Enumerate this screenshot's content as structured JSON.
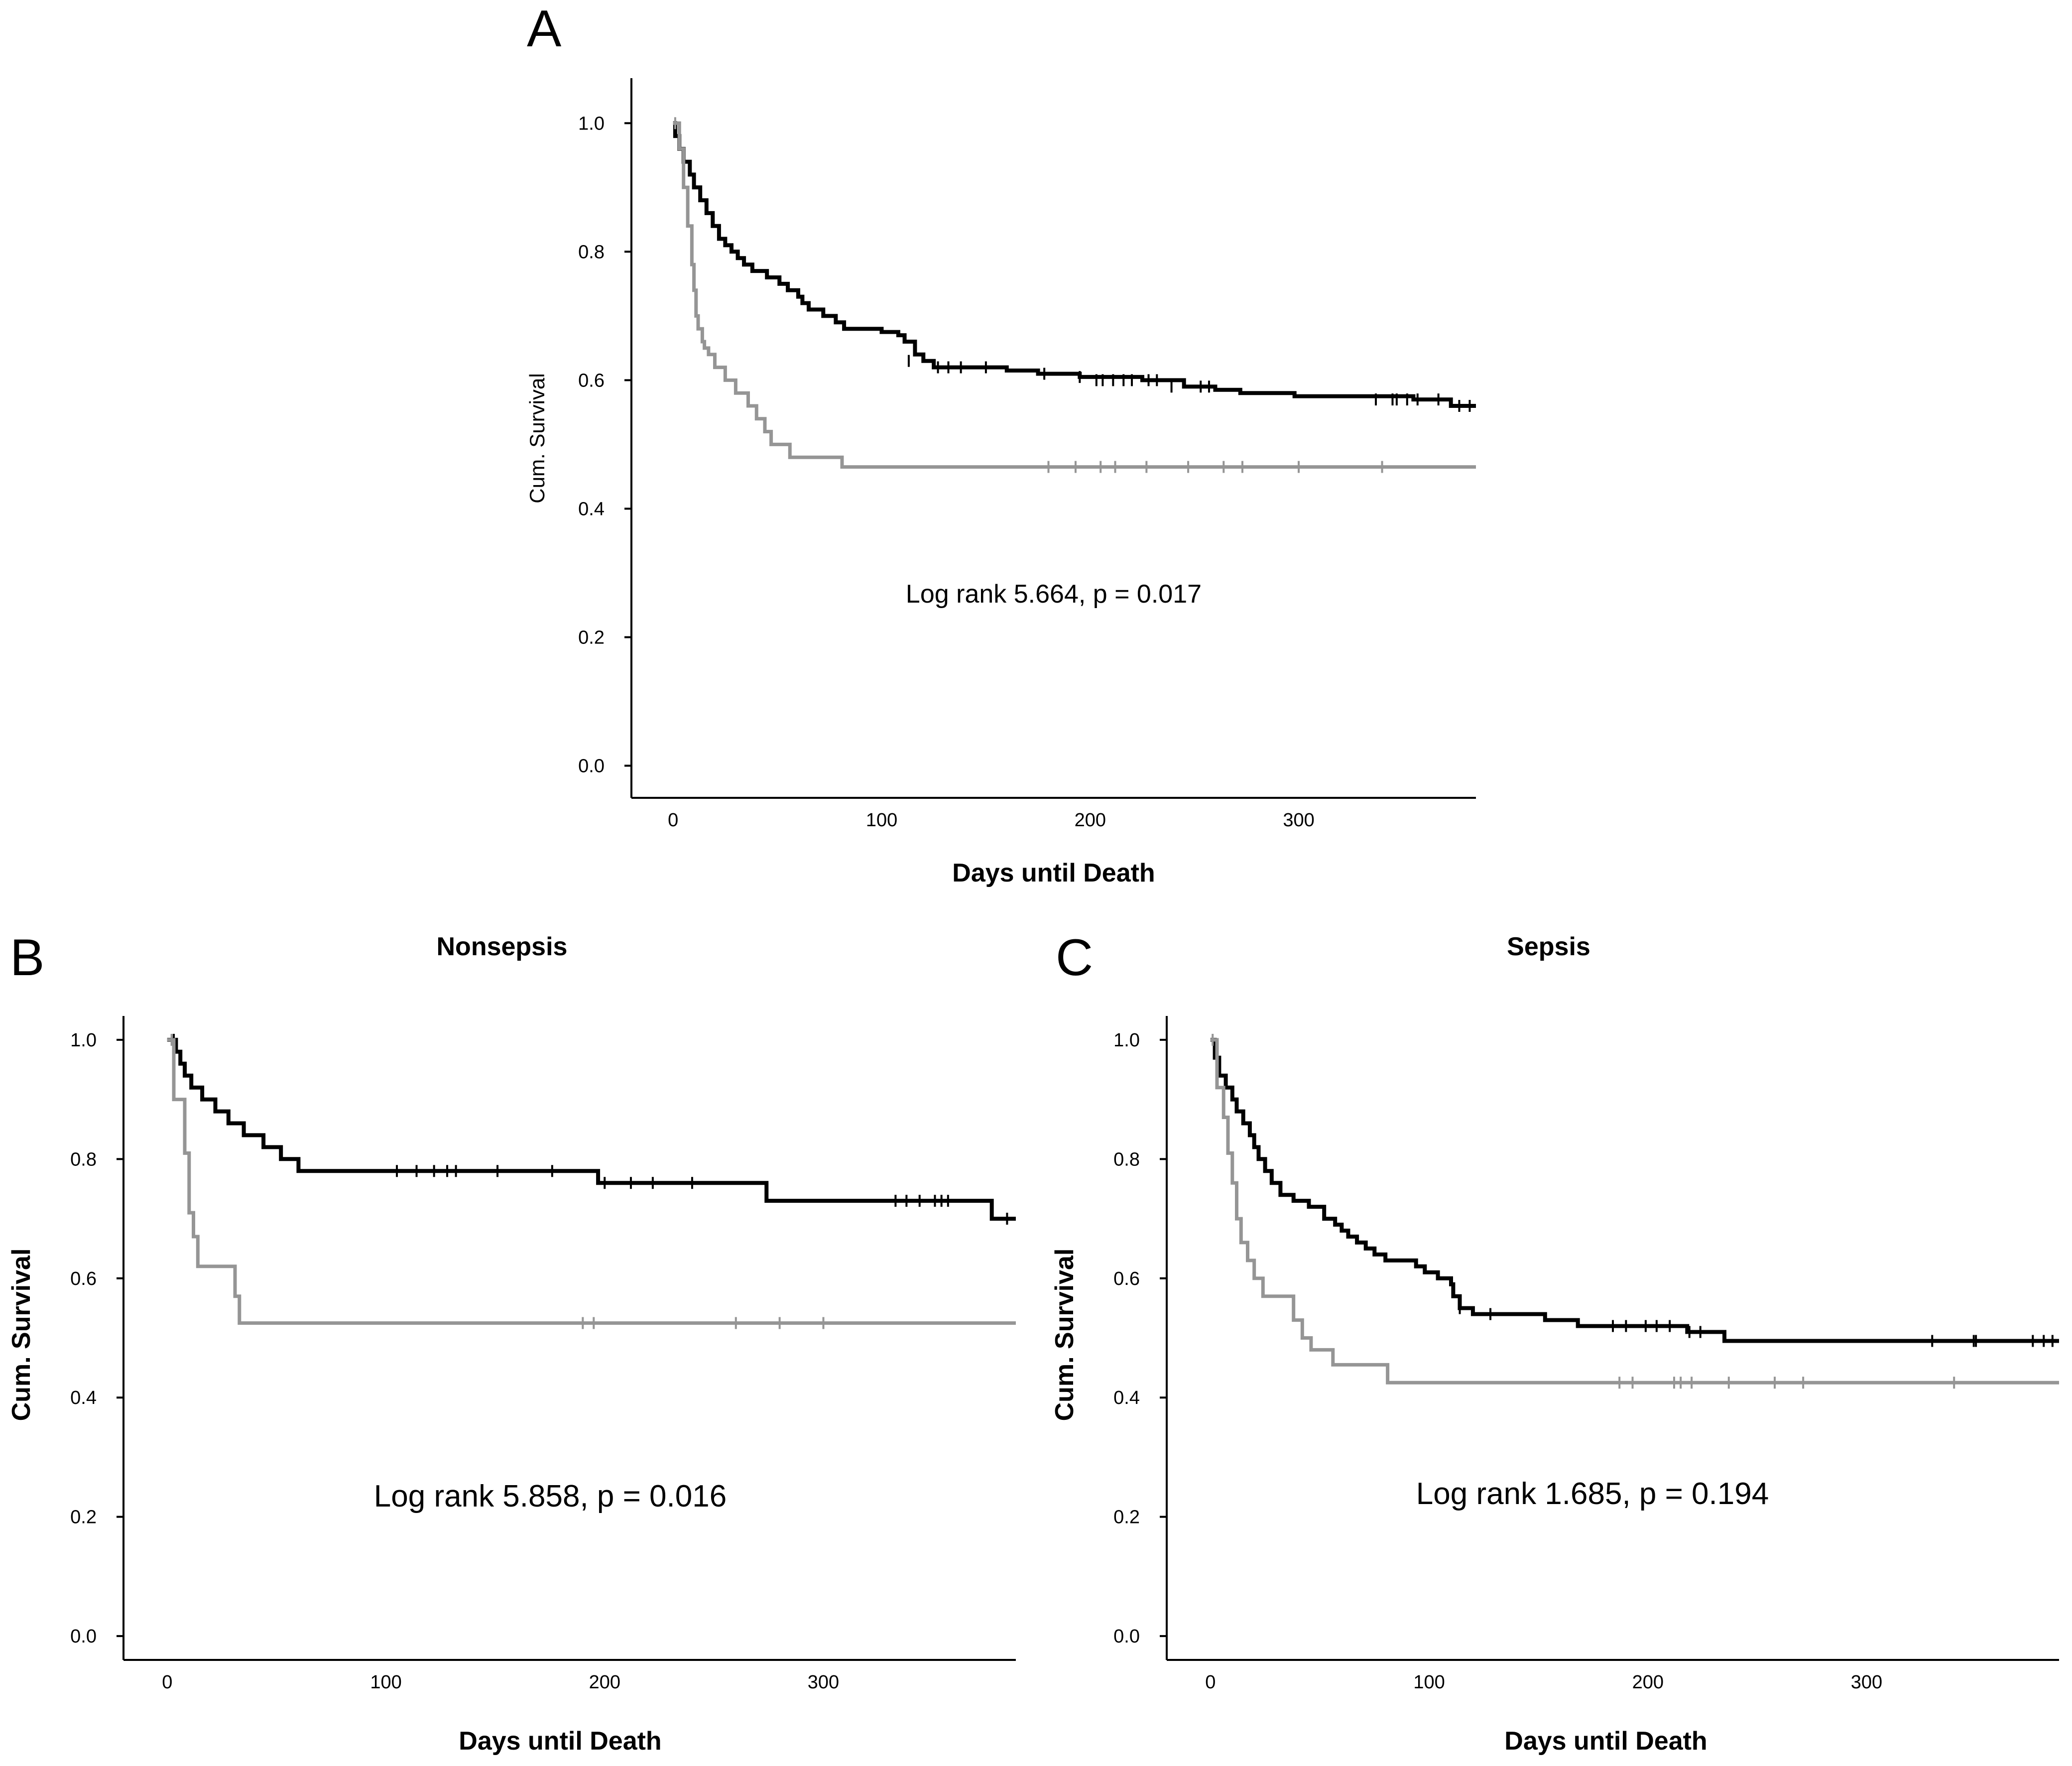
{
  "colors": {
    "series_black": "#000000",
    "series_gray": "#959595",
    "axis": "#000000"
  },
  "chart_data": [
    {
      "panel": "A",
      "type": "line",
      "title": "",
      "xlabel": "Days until Death",
      "ylabel": "Cum. Survival",
      "xlim": [
        -20,
        385
      ],
      "ylim": [
        -0.05,
        1.07
      ],
      "xticks": [
        0,
        100,
        200,
        300
      ],
      "yticks": [
        0.0,
        0.2,
        0.4,
        0.6,
        0.8,
        1.0
      ],
      "grid": false,
      "annotation": "Log rank 5.664, p = 0.017",
      "series": [
        {
          "color": "black",
          "steps": [
            [
              0,
              1.0
            ],
            [
              1,
              0.98
            ],
            [
              3,
              0.96
            ],
            [
              5,
              0.94
            ],
            [
              8,
              0.92
            ],
            [
              10,
              0.9
            ],
            [
              13,
              0.88
            ],
            [
              16,
              0.86
            ],
            [
              19,
              0.84
            ],
            [
              22,
              0.82
            ],
            [
              25,
              0.81
            ],
            [
              28,
              0.8
            ],
            [
              31,
              0.79
            ],
            [
              34,
              0.78
            ],
            [
              38,
              0.77
            ],
            [
              45,
              0.76
            ],
            [
              51,
              0.75
            ],
            [
              55,
              0.74
            ],
            [
              60,
              0.73
            ],
            [
              62,
              0.72
            ],
            [
              65,
              0.71
            ],
            [
              72,
              0.7
            ],
            [
              78,
              0.69
            ],
            [
              82,
              0.68
            ],
            [
              100,
              0.675
            ],
            [
              108,
              0.67
            ],
            [
              111,
              0.66
            ],
            [
              116,
              0.64
            ],
            [
              120,
              0.63
            ],
            [
              125,
              0.62
            ],
            [
              160,
              0.615
            ],
            [
              175,
              0.61
            ],
            [
              195,
              0.605
            ],
            [
              225,
              0.6
            ],
            [
              245,
              0.59
            ],
            [
              260,
              0.585
            ],
            [
              272,
              0.58
            ],
            [
              298,
              0.575
            ],
            [
              355,
              0.57
            ],
            [
              373,
              0.56
            ]
          ],
          "x_end": 385,
          "censored": [
            [
              113,
              0.63
            ],
            [
              127,
              0.62
            ],
            [
              132,
              0.62
            ],
            [
              138,
              0.62
            ],
            [
              150,
              0.62
            ],
            [
              178,
              0.61
            ],
            [
              195,
              0.605
            ],
            [
              203,
              0.6
            ],
            [
              206,
              0.6
            ],
            [
              211,
              0.6
            ],
            [
              216,
              0.6
            ],
            [
              220,
              0.6
            ],
            [
              228,
              0.6
            ],
            [
              232,
              0.6
            ],
            [
              239,
              0.59
            ],
            [
              253,
              0.59
            ],
            [
              257,
              0.59
            ],
            [
              337,
              0.57
            ],
            [
              345,
              0.57
            ],
            [
              347,
              0.57
            ],
            [
              352,
              0.57
            ],
            [
              357,
              0.57
            ],
            [
              367,
              0.57
            ],
            [
              377,
              0.56
            ],
            [
              382,
              0.56
            ]
          ]
        },
        {
          "color": "gray",
          "steps": [
            [
              0,
              1.0
            ],
            [
              3,
              0.96
            ],
            [
              5,
              0.9
            ],
            [
              7,
              0.84
            ],
            [
              9,
              0.78
            ],
            [
              10,
              0.74
            ],
            [
              11,
              0.7
            ],
            [
              12,
              0.68
            ],
            [
              14,
              0.66
            ],
            [
              15,
              0.65
            ],
            [
              17,
              0.64
            ],
            [
              20,
              0.62
            ],
            [
              25,
              0.6
            ],
            [
              30,
              0.58
            ],
            [
              36,
              0.56
            ],
            [
              40,
              0.54
            ],
            [
              44,
              0.52
            ],
            [
              47,
              0.5
            ],
            [
              56,
              0.48
            ],
            [
              81,
              0.465
            ]
          ],
          "x_end": 385,
          "censored": [
            [
              1,
              1.0
            ],
            [
              180,
              0.465
            ],
            [
              193,
              0.465
            ],
            [
              205,
              0.465
            ],
            [
              212,
              0.465
            ],
            [
              227,
              0.465
            ],
            [
              247,
              0.465
            ],
            [
              264,
              0.465
            ],
            [
              273,
              0.465
            ],
            [
              300,
              0.465
            ],
            [
              340,
              0.465
            ]
          ]
        }
      ]
    },
    {
      "panel": "B",
      "type": "line",
      "title": "Nonsepsis",
      "xlabel": "Days until Death",
      "ylabel": "Cum. Survival",
      "xlim": [
        -20,
        388
      ],
      "ylim": [
        -0.04,
        1.04
      ],
      "xticks": [
        0,
        100,
        200,
        300
      ],
      "yticks": [
        0.0,
        0.2,
        0.4,
        0.6,
        0.8,
        1.0
      ],
      "grid": false,
      "annotation": "Log rank 5.858, p = 0.016",
      "series": [
        {
          "color": "black",
          "steps": [
            [
              0,
              1.0
            ],
            [
              4,
              0.98
            ],
            [
              6,
              0.96
            ],
            [
              8,
              0.94
            ],
            [
              11,
              0.92
            ],
            [
              16,
              0.9
            ],
            [
              22,
              0.88
            ],
            [
              28,
              0.86
            ],
            [
              35,
              0.84
            ],
            [
              44,
              0.82
            ],
            [
              52,
              0.8
            ],
            [
              60,
              0.78
            ],
            [
              197,
              0.76
            ],
            [
              274,
              0.73
            ],
            [
              377,
              0.7
            ]
          ],
          "x_end": 388,
          "censored": [
            [
              3,
              1.0
            ],
            [
              105,
              0.78
            ],
            [
              114,
              0.78
            ],
            [
              122,
              0.78
            ],
            [
              128,
              0.78
            ],
            [
              132,
              0.78
            ],
            [
              151,
              0.78
            ],
            [
              176,
              0.78
            ],
            [
              200,
              0.76
            ],
            [
              212,
              0.76
            ],
            [
              222,
              0.76
            ],
            [
              240,
              0.76
            ],
            [
              333,
              0.73
            ],
            [
              338,
              0.73
            ],
            [
              344,
              0.73
            ],
            [
              351,
              0.73
            ],
            [
              354,
              0.73
            ],
            [
              357,
              0.73
            ],
            [
              384,
              0.7
            ]
          ]
        },
        {
          "color": "gray",
          "steps": [
            [
              0,
              1.0
            ],
            [
              3,
              0.9
            ],
            [
              8,
              0.81
            ],
            [
              10,
              0.71
            ],
            [
              12,
              0.67
            ],
            [
              14,
              0.62
            ],
            [
              31,
              0.57
            ],
            [
              33,
              0.525
            ]
          ],
          "x_end": 388,
          "censored": [
            [
              2,
              1.0
            ],
            [
              190,
              0.525
            ],
            [
              195,
              0.525
            ],
            [
              260,
              0.525
            ],
            [
              280,
              0.525
            ],
            [
              300,
              0.525
            ]
          ]
        }
      ]
    },
    {
      "panel": "C",
      "type": "line",
      "title": "Sepsis",
      "xlabel": "Days until Death",
      "ylabel": "Cum. Survival",
      "xlim": [
        -20,
        388
      ],
      "ylim": [
        -0.04,
        1.04
      ],
      "xticks": [
        0,
        100,
        200,
        300
      ],
      "yticks": [
        0.0,
        0.2,
        0.4,
        0.6,
        0.8,
        1.0
      ],
      "grid": false,
      "annotation": "Log rank 1.685, p = 0.194",
      "series": [
        {
          "color": "black",
          "steps": [
            [
              0,
              1.0
            ],
            [
              2,
              0.97
            ],
            [
              4,
              0.94
            ],
            [
              7,
              0.92
            ],
            [
              10,
              0.9
            ],
            [
              12,
              0.88
            ],
            [
              15,
              0.86
            ],
            [
              18,
              0.84
            ],
            [
              20,
              0.82
            ],
            [
              22,
              0.8
            ],
            [
              25,
              0.78
            ],
            [
              28,
              0.76
            ],
            [
              32,
              0.74
            ],
            [
              38,
              0.73
            ],
            [
              45,
              0.72
            ],
            [
              52,
              0.7
            ],
            [
              57,
              0.69
            ],
            [
              60,
              0.68
            ],
            [
              63,
              0.67
            ],
            [
              67,
              0.66
            ],
            [
              71,
              0.65
            ],
            [
              75,
              0.64
            ],
            [
              80,
              0.63
            ],
            [
              94,
              0.62
            ],
            [
              98,
              0.61
            ],
            [
              104,
              0.6
            ],
            [
              110,
              0.59
            ],
            [
              111,
              0.57
            ],
            [
              114,
              0.55
            ],
            [
              120,
              0.54
            ],
            [
              153,
              0.53
            ],
            [
              168,
              0.52
            ],
            [
              218,
              0.51
            ],
            [
              235,
              0.495
            ]
          ],
          "x_end": 388,
          "censored": [
            [
              3,
              0.98
            ],
            [
              114,
              0.55
            ],
            [
              128,
              0.54
            ],
            [
              184,
              0.52
            ],
            [
              190,
              0.52
            ],
            [
              199,
              0.52
            ],
            [
              204,
              0.52
            ],
            [
              210,
              0.52
            ],
            [
              219,
              0.51
            ],
            [
              224,
              0.51
            ],
            [
              330,
              0.495
            ],
            [
              349,
              0.495
            ],
            [
              350,
              0.495
            ],
            [
              376,
              0.495
            ],
            [
              381,
              0.495
            ],
            [
              385,
              0.495
            ]
          ]
        },
        {
          "color": "gray",
          "steps": [
            [
              0,
              1.0
            ],
            [
              3,
              0.92
            ],
            [
              6,
              0.87
            ],
            [
              8,
              0.81
            ],
            [
              10,
              0.76
            ],
            [
              12,
              0.7
            ],
            [
              14,
              0.66
            ],
            [
              17,
              0.63
            ],
            [
              20,
              0.6
            ],
            [
              24,
              0.57
            ],
            [
              38,
              0.53
            ],
            [
              42,
              0.5
            ],
            [
              46,
              0.48
            ],
            [
              56,
              0.455
            ],
            [
              81,
              0.425
            ]
          ],
          "x_end": 388,
          "censored": [
            [
              1,
              1.0
            ],
            [
              187,
              0.425
            ],
            [
              193,
              0.425
            ],
            [
              212,
              0.425
            ],
            [
              215,
              0.425
            ],
            [
              220,
              0.425
            ],
            [
              237,
              0.425
            ],
            [
              258,
              0.425
            ],
            [
              271,
              0.425
            ],
            [
              340,
              0.425
            ]
          ]
        }
      ]
    }
  ]
}
